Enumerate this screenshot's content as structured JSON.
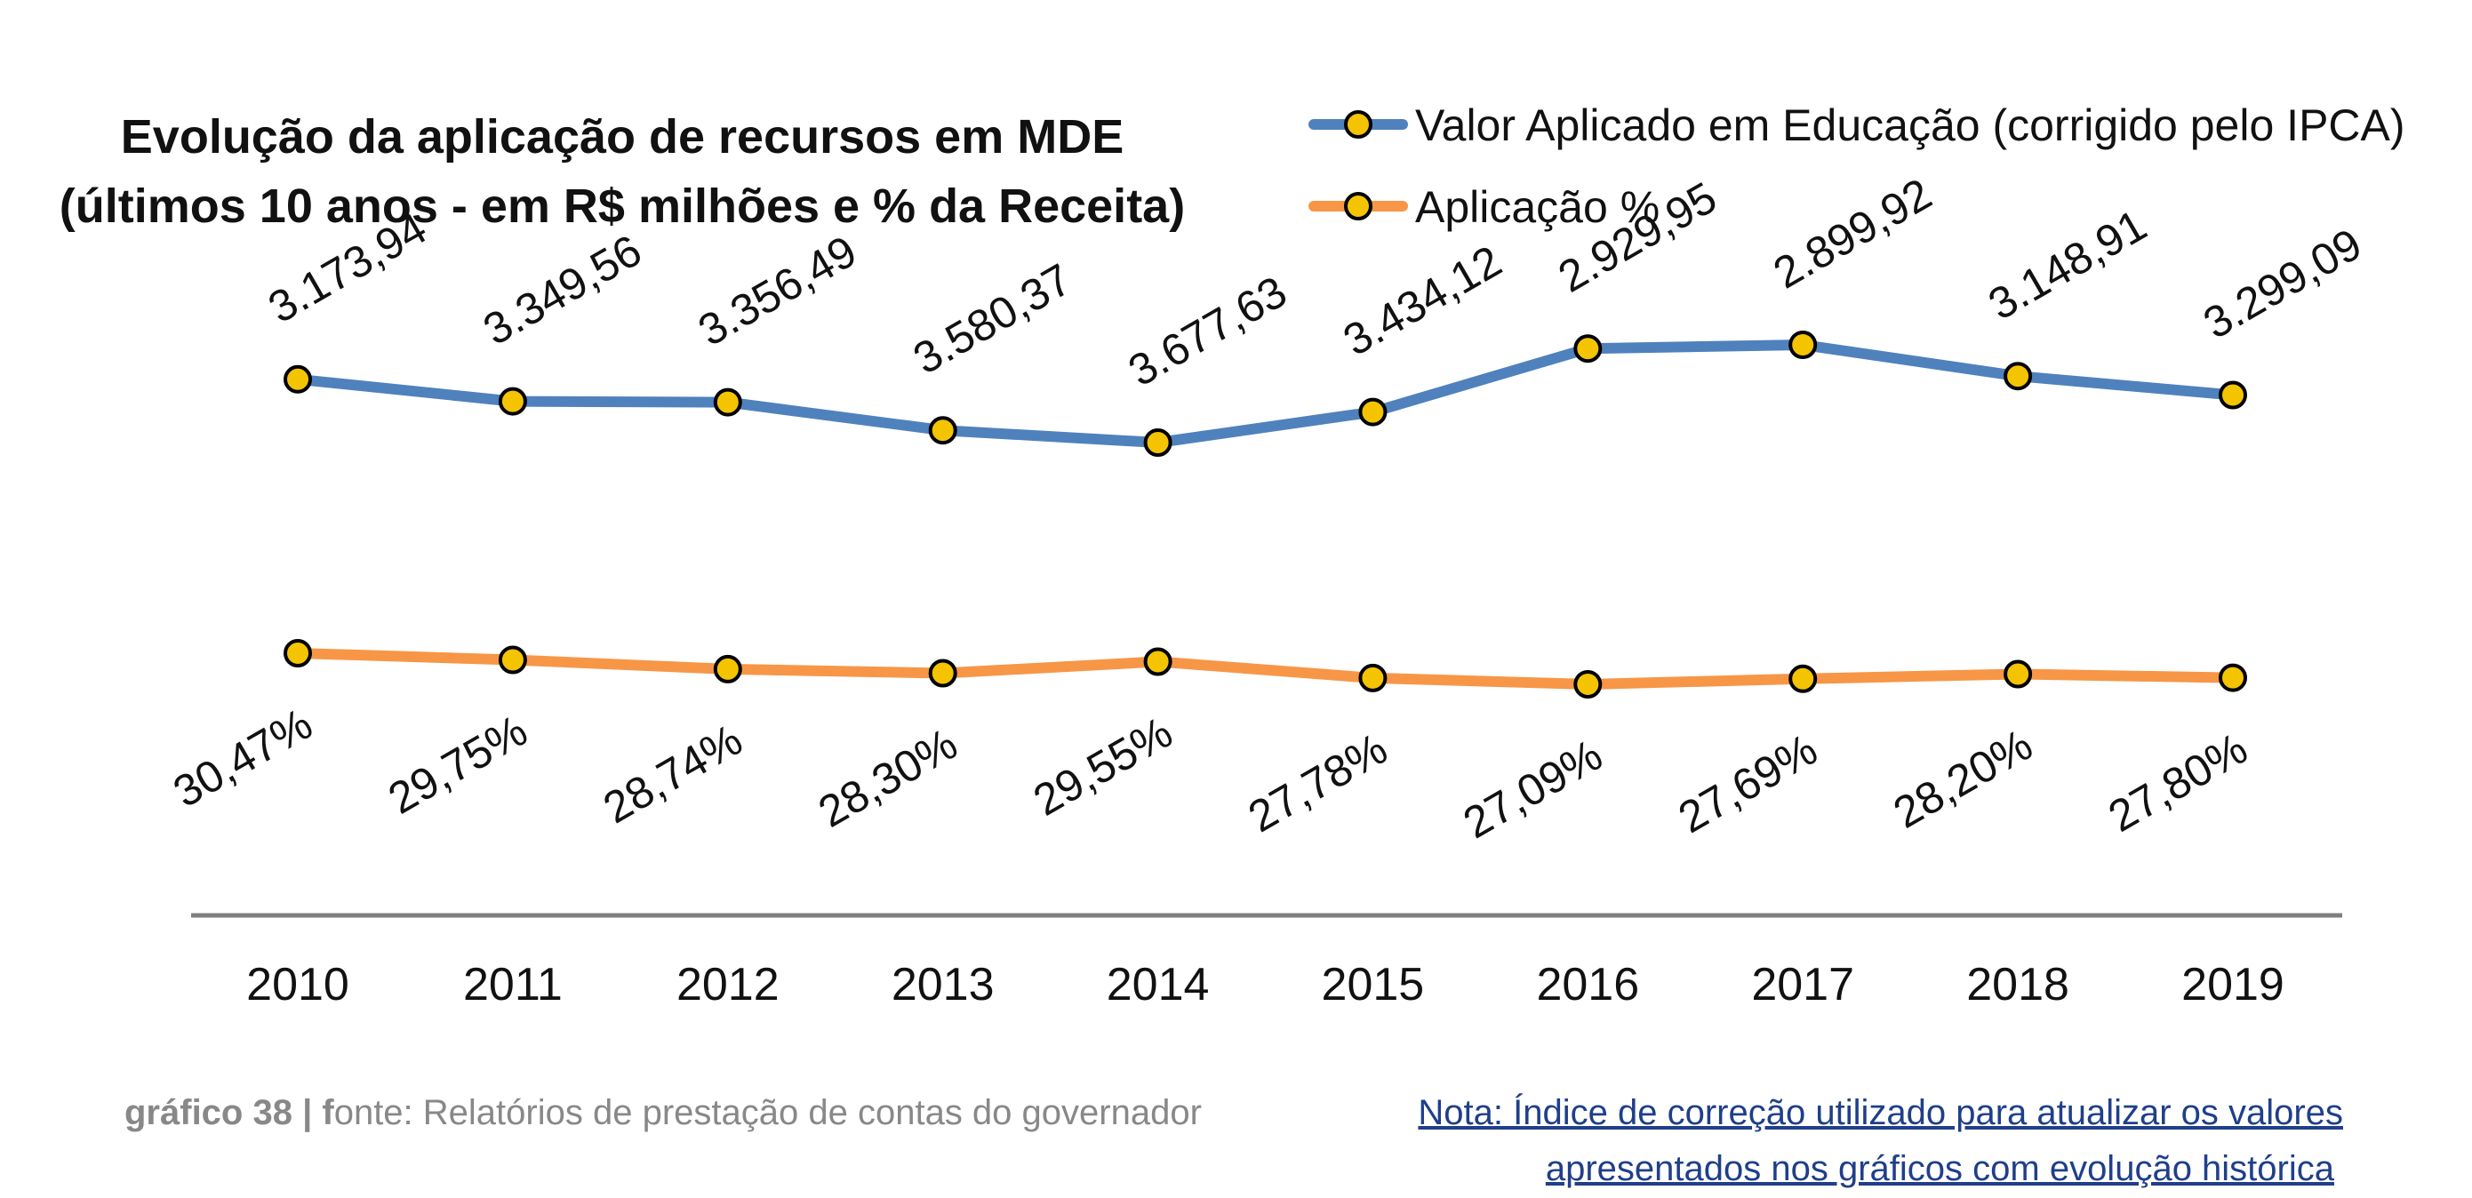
{
  "chart_data": {
    "type": "line",
    "title": [
      "Evolução da aplicação de recursos em MDE",
      "(últimos 10 anos - em R$ milhões e % da Receita)"
    ],
    "categories": [
      "2010",
      "2011",
      "2012",
      "2013",
      "2014",
      "2015",
      "2016",
      "2017",
      "2018",
      "2019"
    ],
    "series": [
      {
        "name": "Valor Aplicado em Educação (corrigido pelo IPCA)",
        "color": "#4f81bd",
        "values": [
          3173.94,
          3349.56,
          3356.49,
          3580.37,
          3677.63,
          3434.12,
          2929.95,
          2899.92,
          3148.91,
          3299.09
        ],
        "labels": [
          "3.173,94",
          "3.349,56",
          "3.356,49",
          "3.580,37",
          "3.677,63",
          "3.434,12",
          "2.929,95",
          "2.899,92",
          "3.148,91",
          "3.299,09"
        ]
      },
      {
        "name": "Aplicação %",
        "color": "#f79646",
        "values": [
          30.47,
          29.75,
          28.74,
          28.3,
          29.55,
          27.78,
          27.09,
          27.69,
          28.2,
          27.8
        ],
        "labels": [
          "30,47%",
          "29,75%",
          "28,74%",
          "28,30%",
          "29,55%",
          "27,78%",
          "27,09%",
          "27,69%",
          "28,20%",
          "27,80%"
        ]
      }
    ],
    "marker_color": "#f5c400",
    "axis_color": "#7f7f7f",
    "legend_position": "top-right",
    "grid": false
  },
  "footer": {
    "source_bold": "gráfico 38 | f",
    "source_rest": "onte: Relatórios de prestação de contas do governador",
    "note_line1": "Nota: Índice de correção utilizado para atualizar os valores",
    "note_line2": "apresentados nos gráficos com evolução histórica"
  }
}
